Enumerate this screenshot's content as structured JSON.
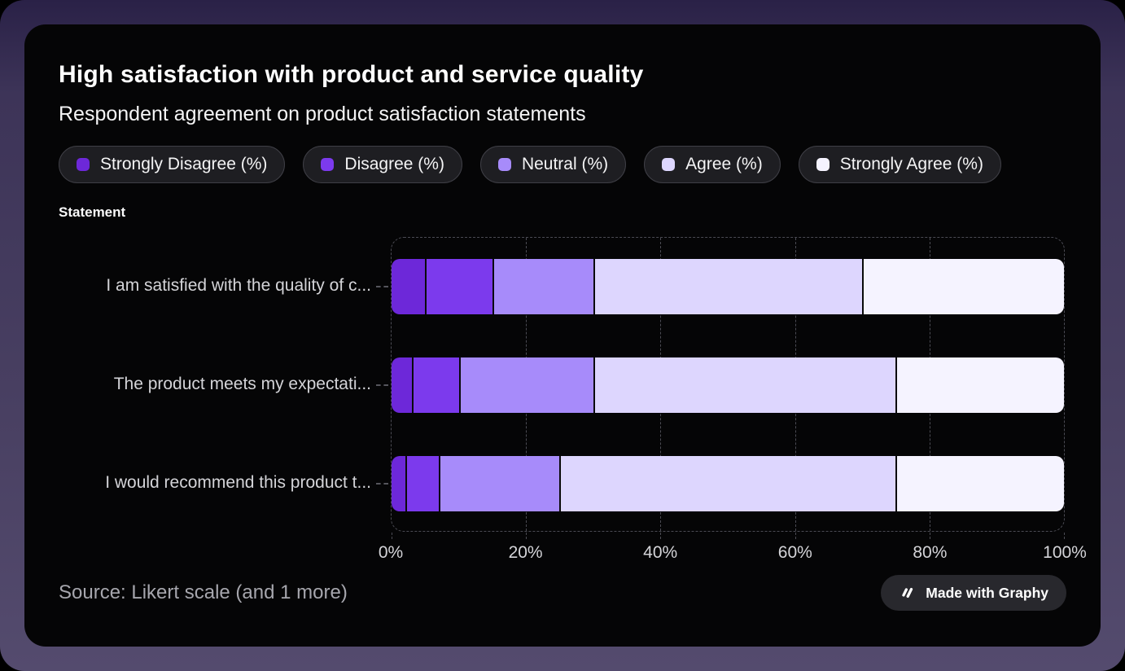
{
  "header": {
    "title": "High satisfaction with product and service quality",
    "subtitle": "Respondent agreement on product satisfaction statements"
  },
  "footer": {
    "source": "Source: Likert scale (and 1 more)",
    "badge_label": "Made with Graphy"
  },
  "chart_data": {
    "type": "bar",
    "orientation": "horizontal",
    "stacked": true,
    "unit": "percent",
    "ylabel": "Statement",
    "categories": [
      "I am satisfied with the quality of c...",
      "The product meets my expectati...",
      "I would recommend this product t..."
    ],
    "series": [
      {
        "name": "Strongly Disagree (%)",
        "color": "#6d28d9",
        "values": [
          5,
          3,
          2
        ]
      },
      {
        "name": "Disagree (%)",
        "color": "#7c3aed",
        "values": [
          10,
          7,
          5
        ]
      },
      {
        "name": "Neutral (%)",
        "color": "#a78bfa",
        "values": [
          15,
          20,
          18
        ]
      },
      {
        "name": "Agree (%)",
        "color": "#ddd6fe",
        "values": [
          40,
          45,
          50
        ]
      },
      {
        "name": "Strongly Agree (%)",
        "color": "#f5f3ff",
        "values": [
          30,
          25,
          25
        ]
      }
    ],
    "x_ticks": [
      "0%",
      "20%",
      "40%",
      "60%",
      "80%",
      "100%"
    ],
    "xlim": [
      0,
      100
    ],
    "legend_position": "top",
    "grid": "vertical-dashed"
  }
}
